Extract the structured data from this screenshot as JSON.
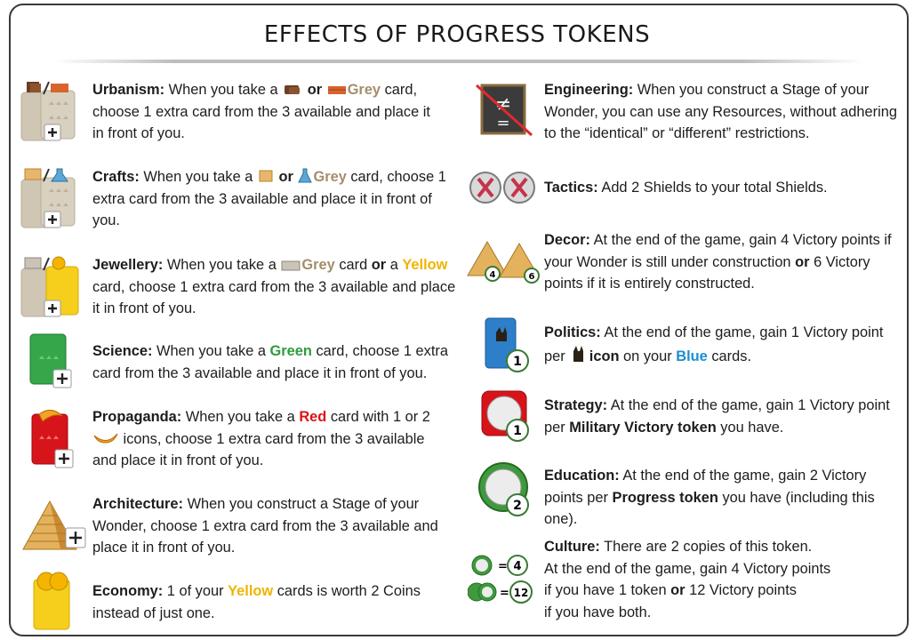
{
  "title": "EFFECTS OF PROGRESS TOKENS",
  "colors": {
    "grey": "#a58d6b",
    "yellow": "#f0b400",
    "green": "#2e9b3f",
    "red": "#d8141b",
    "blue": "#1a8fd1"
  },
  "left": {
    "urbanism": {
      "name": "Urbanism:",
      "t1": " When you take a ",
      "or": " or ",
      "grey": "Grey",
      "t2": " card, choose 1 extra card from the 3 available and place it in front of you.",
      "icon": "wood-brick-grey-card-plus-icon"
    },
    "crafts": {
      "name": "Crafts:",
      "t1": " When you take a ",
      "or": " or ",
      "grey": "Grey",
      "t2": " card, choose 1 extra card from the 3 available and place it in front of you.",
      "icon": "papyrus-glass-grey-card-plus-icon"
    },
    "jewellery": {
      "name": "Jewellery:",
      "t1": " When you take a ",
      "grey": "Grey",
      "t2": " card ",
      "or": "or",
      "t3": " a ",
      "yellow": "Yellow",
      "t4": " card, choose 1 extra card from the 3 available and place it in front of you.",
      "icon": "stone-coin-grey-yellow-card-plus-icon"
    },
    "science": {
      "name": "Science:",
      "t1": " When you take a ",
      "green": "Green",
      "t2": " card, choose 1 extra card from the 3 available and place it in front of you.",
      "icon": "green-card-plus-icon"
    },
    "propaganda": {
      "name": "Propaganda:",
      "t1": " When you take a ",
      "red": "Red",
      "t2": " card with 1 or 2 ",
      "t3": " icons, choose 1 extra card from the 3 available and place it in front of you.",
      "icon": "red-card-plus-icon"
    },
    "architecture": {
      "name": "Architecture:",
      "t1": " When you construct a Stage of your Wonder, choose 1 extra card from the 3 available and place it in front of you.",
      "icon": "pyramid-plus-icon"
    },
    "economy": {
      "name": "Economy:",
      "t1": " 1 of your ",
      "yellow": "Yellow",
      "t2": " cards is worth 2 Coins instead of just one.",
      "icon": "yellow-card-coins-icon"
    }
  },
  "right": {
    "engineering": {
      "name": "Engineering:",
      "t1": " When you construct a Stage of your Wonder, you can use any Resources, without adhering to the “identical” or “different” restrictions.",
      "icon": "not-equal-crossed-icon"
    },
    "tactics": {
      "name": "Tactics:",
      "t1": " Add 2 Shields to your total Shields.",
      "icon": "shields-icon"
    },
    "decor": {
      "name": "Decor:",
      "t1": " At the end of the game, gain 4 Victory points if your Wonder is still under construction ",
      "or": "or",
      "t2": " 6 Victory points if it is entirely constructed.",
      "icon": "pyramids-4-6-icon",
      "badge1": "4",
      "badge2": "6"
    },
    "politics": {
      "name": "Politics:",
      "t1": " At the end of the game, gain 1 Victory point per ",
      "t2": " icon",
      "t3": " on your ",
      "blue": "Blue",
      "t4": " cards.",
      "icon": "blue-card-cat-icon",
      "badge": "1"
    },
    "strategy": {
      "name": "Strategy:",
      "t1": " At the end of the game, gain 1 Victory point per ",
      "b1": "Military Victory token",
      "t2": " you have.",
      "icon": "military-token-icon",
      "badge": "1"
    },
    "education": {
      "name": "Education:",
      "t1": " At the end of the game, gain 2 Victory points per ",
      "b1": "Progress token",
      "t2": " you have (including this one).",
      "icon": "progress-token-icon",
      "badge": "2"
    },
    "culture": {
      "name": "Culture:",
      "t1": " There are 2 copies of this token.",
      "t2": "At the end of the game, gain 4 Victory points",
      "t3": "if you have 1 token ",
      "or": "or",
      "t4": " 12 Victory points",
      "t5": "if you have both.",
      "icon": "culture-tokens-icon",
      "eq": "=",
      "v1": "4",
      "v2": "12"
    }
  }
}
